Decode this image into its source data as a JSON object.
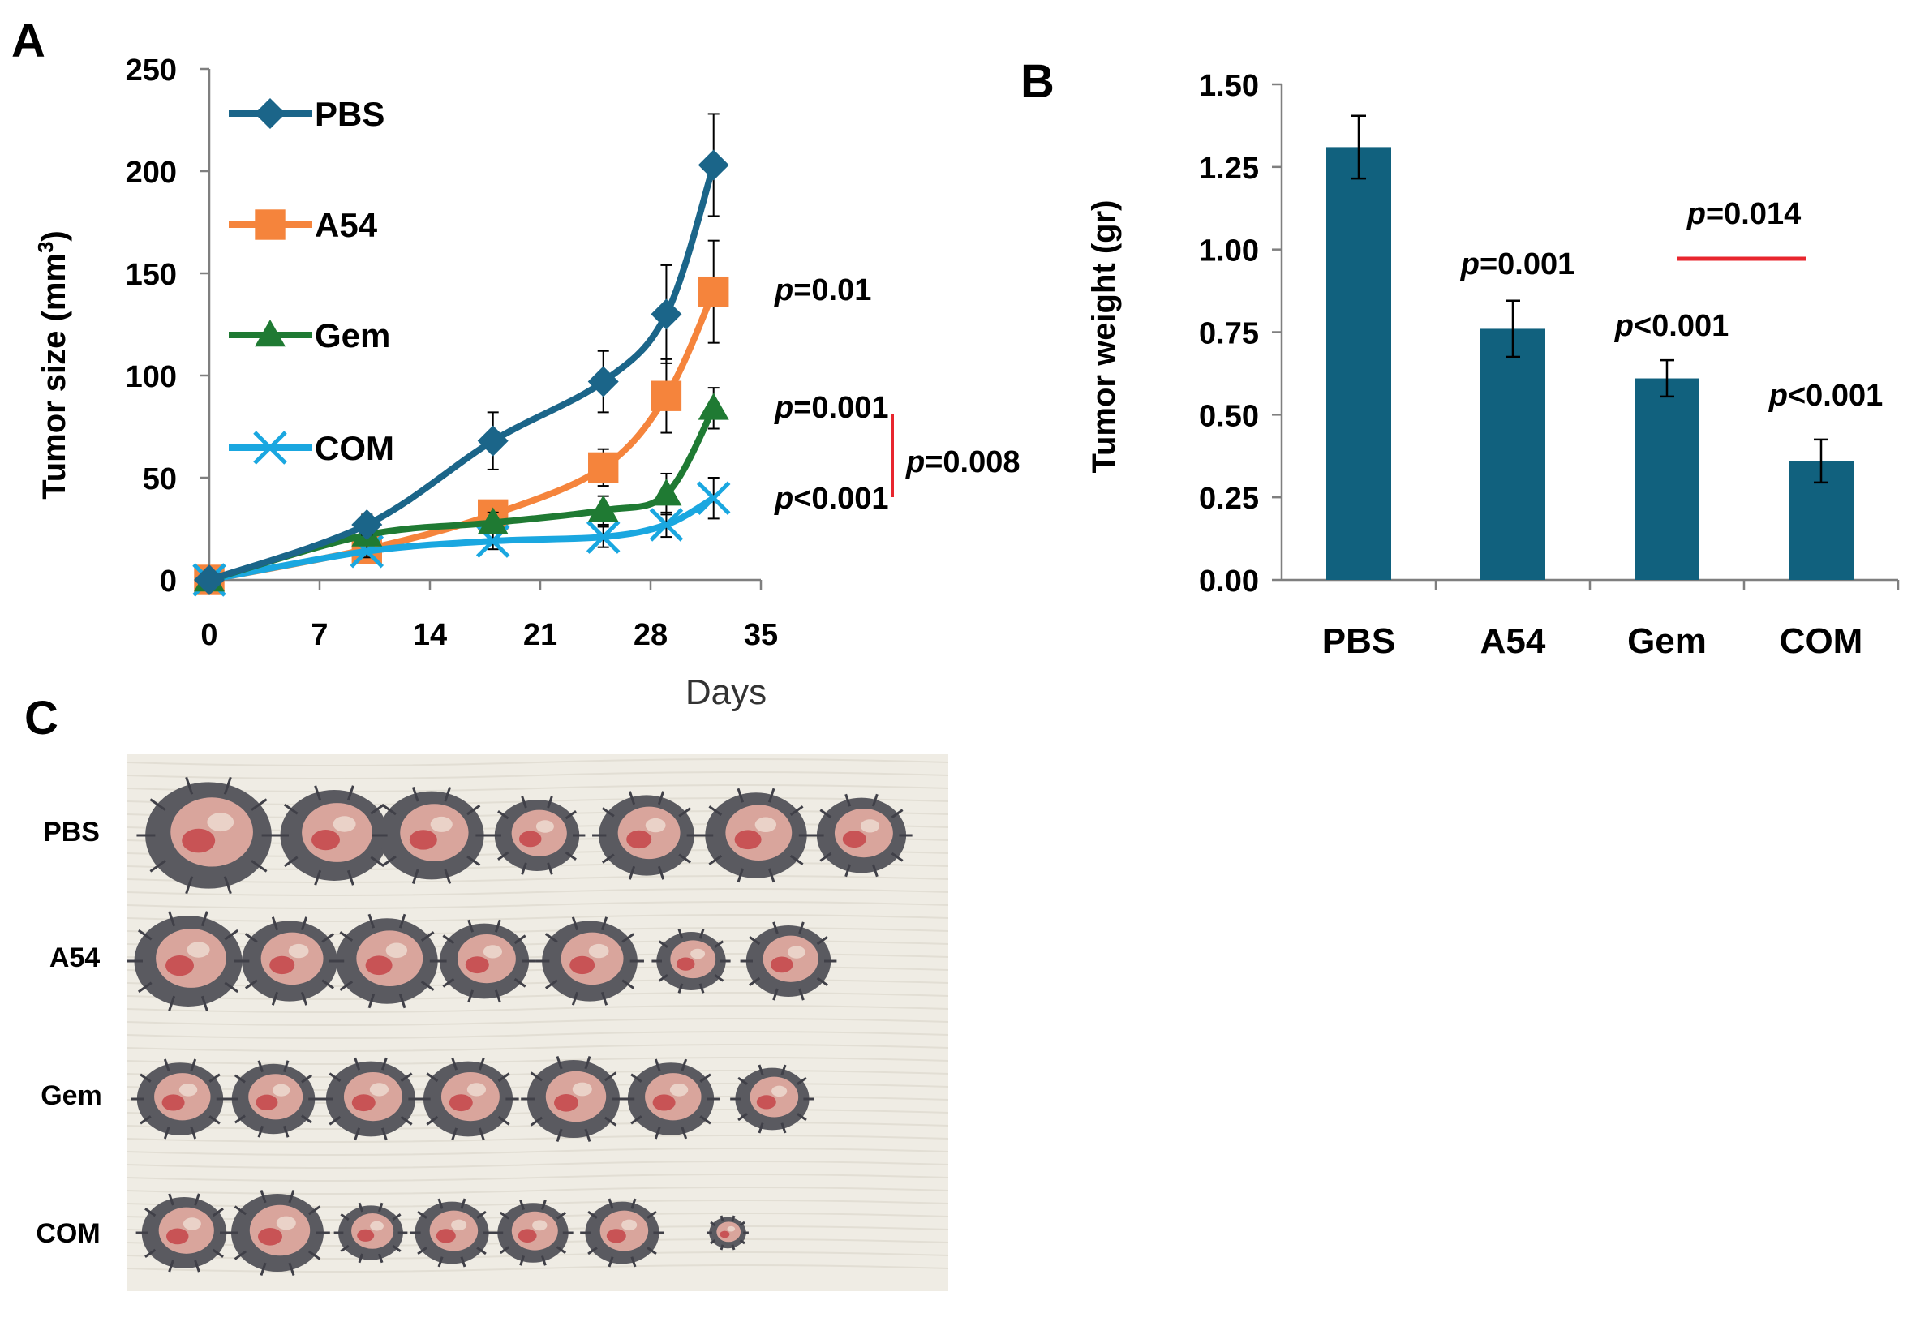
{
  "panel_labels": {
    "a": "A",
    "b": "B",
    "c": "C"
  },
  "colors": {
    "PBS": "#1b6589",
    "A54": "#f5843c",
    "Gem": "#1f7a33",
    "COM": "#1aa7e0",
    "bar": "#11617e",
    "sig_line": "#e8262e",
    "axis": "#7f7f7f"
  },
  "chart_data": [
    {
      "type": "line",
      "title": "",
      "xlabel": "Days",
      "ylabel_main": "Tumor size (mm",
      "ylabel_sup": "3",
      "ylabel_end": ")",
      "xlim": [
        0,
        35
      ],
      "ylim": [
        0,
        250
      ],
      "xticks": [
        0,
        7,
        14,
        21,
        28,
        35
      ],
      "yticks": [
        0,
        50,
        100,
        150,
        200,
        250
      ],
      "legend_position": "top-left",
      "series": [
        {
          "name": "PBS",
          "marker": "diamond",
          "x": [
            0,
            10,
            18,
            25,
            29,
            32
          ],
          "y": [
            0,
            27,
            68,
            97,
            130,
            203
          ],
          "err": [
            0,
            5,
            14,
            15,
            24,
            25
          ]
        },
        {
          "name": "A54",
          "marker": "square",
          "x": [
            0,
            10,
            18,
            25,
            29,
            32
          ],
          "y": [
            0,
            15,
            32,
            55,
            90,
            141
          ],
          "err": [
            0,
            3,
            6,
            9,
            18,
            25
          ]
        },
        {
          "name": "Gem",
          "marker": "triangle",
          "x": [
            0,
            10,
            18,
            25,
            29,
            32
          ],
          "y": [
            0,
            22,
            28,
            34,
            42,
            84
          ],
          "err": [
            0,
            4,
            5,
            7,
            10,
            10
          ]
        },
        {
          "name": "COM",
          "marker": "x",
          "x": [
            0,
            10,
            18,
            25,
            29,
            32
          ],
          "y": [
            0,
            14,
            19,
            21,
            27,
            40
          ],
          "err": [
            0,
            3,
            4,
            5,
            6,
            10
          ]
        }
      ],
      "annotations": [
        {
          "series": "A54",
          "p": "p",
          "text": "=0.01"
        },
        {
          "series": "Gem",
          "p": "p",
          "text": "=0.001"
        },
        {
          "series": "COM",
          "p": "p",
          "text": "<0.001"
        },
        {
          "bracket": "Gem-COM",
          "p": "p",
          "text": "=0.008"
        }
      ]
    },
    {
      "type": "bar",
      "title": "",
      "xlabel": "",
      "ylabel": "Tumor weight (gr)",
      "ylim": [
        0,
        1.5
      ],
      "yticks": [
        "0.00",
        "0.25",
        "0.50",
        "0.75",
        "1.00",
        "1.25",
        "1.50"
      ],
      "categories": [
        "PBS",
        "A54",
        "Gem",
        "COM"
      ],
      "values": [
        1.31,
        0.76,
        0.61,
        0.36
      ],
      "err": [
        0.095,
        0.085,
        0.055,
        0.065
      ],
      "annotations": [
        {
          "category": "A54",
          "p": "p",
          "text": "=0.001"
        },
        {
          "category": "Gem",
          "p": "p",
          "text": "<0.001"
        },
        {
          "category": "COM",
          "p": "p",
          "text": "<0.001"
        },
        {
          "bracket": "Gem-COM",
          "p": "p",
          "text": "=0.014"
        }
      ]
    }
  ],
  "photo": {
    "rows": [
      "PBS",
      "A54",
      "Gem",
      "COM"
    ],
    "counts": [
      7,
      7,
      7,
      7
    ]
  }
}
